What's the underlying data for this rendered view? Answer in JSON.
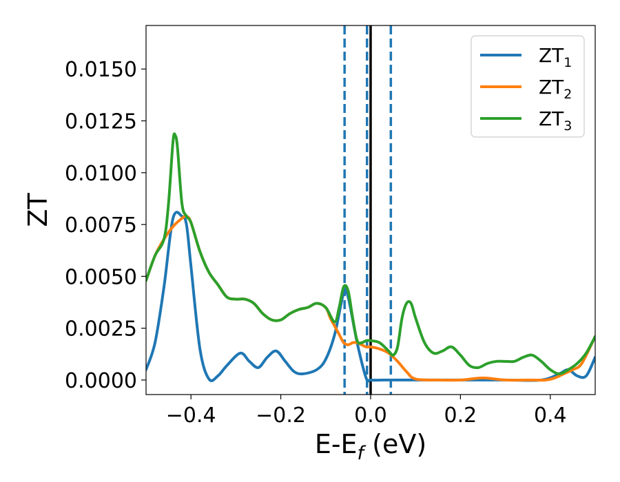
{
  "chart_data": {
    "type": "line",
    "xlabel": {
      "main": "E-E",
      "sub": "f",
      "tail": " (eV)"
    },
    "ylabel": "ZT",
    "xlim": [
      -0.5,
      0.5
    ],
    "ylim": [
      -0.0007,
      0.0171
    ],
    "x_ticks": [
      -0.4,
      -0.2,
      0.0,
      0.2,
      0.4
    ],
    "x_tick_labels": [
      "−0.4",
      "−0.2",
      "0.0",
      "0.2",
      "0.4"
    ],
    "y_ticks": [
      0.0,
      0.0025,
      0.005,
      0.0075,
      0.01,
      0.0125,
      0.015
    ],
    "y_tick_labels": [
      "0.0000",
      "0.0025",
      "0.0050",
      "0.0075",
      "0.0100",
      "0.0125",
      "0.0150"
    ],
    "grid": false,
    "legend_position": "top-right",
    "reference_lines": [
      {
        "x": -0.058,
        "style": "dashed",
        "color": "#1f77b4"
      },
      {
        "x": -0.008,
        "style": "dashed",
        "color": "#1f77b4"
      },
      {
        "x": 0.0,
        "style": "solid",
        "color": "#000000"
      },
      {
        "x": 0.045,
        "style": "dashed",
        "color": "#1f77b4"
      }
    ],
    "series": [
      {
        "name": {
          "main": "ZT",
          "sub": "1"
        },
        "color": "#1f77b4",
        "points": [
          [
            -0.5,
            0.0005
          ],
          [
            -0.48,
            0.0018
          ],
          [
            -0.46,
            0.0045
          ],
          [
            -0.44,
            0.0078
          ],
          [
            -0.42,
            0.0079
          ],
          [
            -0.41,
            0.0075
          ],
          [
            -0.4,
            0.0055
          ],
          [
            -0.38,
            0.0015
          ],
          [
            -0.36,
            5e-05
          ],
          [
            -0.34,
            0.0002
          ],
          [
            -0.32,
            0.0007
          ],
          [
            -0.29,
            0.0013
          ],
          [
            -0.27,
            0.0009
          ],
          [
            -0.25,
            0.0006
          ],
          [
            -0.23,
            0.0011
          ],
          [
            -0.21,
            0.0014
          ],
          [
            -0.19,
            0.0009
          ],
          [
            -0.17,
            0.0004
          ],
          [
            -0.15,
            0.0003
          ],
          [
            -0.12,
            0.0005
          ],
          [
            -0.1,
            0.001
          ],
          [
            -0.08,
            0.0022
          ],
          [
            -0.06,
            0.0042
          ],
          [
            -0.05,
            0.004
          ],
          [
            -0.03,
            0.0018
          ],
          [
            -0.01,
            0.0001
          ],
          [
            0.0,
            0.0
          ],
          [
            0.03,
            0.0
          ],
          [
            0.05,
            0.0
          ],
          [
            0.1,
            0.0
          ],
          [
            0.2,
            0.0
          ],
          [
            0.3,
            0.0
          ],
          [
            0.38,
            0.0
          ],
          [
            0.42,
            0.0003
          ],
          [
            0.44,
            0.0005
          ],
          [
            0.46,
            0.0002
          ],
          [
            0.48,
            0.0002
          ],
          [
            0.5,
            0.0011
          ]
        ]
      },
      {
        "name": {
          "main": "ZT",
          "sub": "2"
        },
        "color": "#ff7f0e",
        "points": [
          [
            -0.5,
            0.0048
          ],
          [
            -0.48,
            0.006
          ],
          [
            -0.46,
            0.0068
          ],
          [
            -0.44,
            0.0074
          ],
          [
            -0.42,
            0.0078
          ],
          [
            -0.41,
            0.0079
          ],
          [
            -0.4,
            0.0076
          ],
          [
            -0.38,
            0.0062
          ],
          [
            -0.36,
            0.0052
          ],
          [
            -0.34,
            0.0046
          ],
          [
            -0.32,
            0.004
          ],
          [
            -0.3,
            0.0039
          ],
          [
            -0.28,
            0.0039
          ],
          [
            -0.26,
            0.0037
          ],
          [
            -0.24,
            0.0032
          ],
          [
            -0.22,
            0.0029
          ],
          [
            -0.2,
            0.0029
          ],
          [
            -0.18,
            0.0032
          ],
          [
            -0.16,
            0.0034
          ],
          [
            -0.14,
            0.0035
          ],
          [
            -0.12,
            0.0037
          ],
          [
            -0.1,
            0.0035
          ],
          [
            -0.09,
            0.003
          ],
          [
            -0.08,
            0.0026
          ],
          [
            -0.07,
            0.0022
          ],
          [
            -0.06,
            0.0018
          ],
          [
            -0.05,
            0.0017
          ],
          [
            -0.04,
            0.0018
          ],
          [
            -0.03,
            0.0018
          ],
          [
            -0.02,
            0.0017
          ],
          [
            -0.01,
            0.0016
          ],
          [
            0.0,
            0.0016
          ],
          [
            0.02,
            0.0015
          ],
          [
            0.04,
            0.0013
          ],
          [
            0.06,
            0.0009
          ],
          [
            0.08,
            0.0004
          ],
          [
            0.1,
            5e-05
          ],
          [
            0.15,
            0.0
          ],
          [
            0.2,
            0.0
          ],
          [
            0.25,
            0.0001
          ],
          [
            0.3,
            0.0
          ],
          [
            0.35,
            0.0
          ],
          [
            0.39,
            0.0
          ],
          [
            0.41,
            0.0001
          ],
          [
            0.43,
            0.0003
          ],
          [
            0.45,
            0.0005
          ],
          [
            0.47,
            0.0008
          ],
          [
            0.5,
            0.0021
          ]
        ]
      },
      {
        "name": {
          "main": "ZT",
          "sub": "3"
        },
        "color": "#2ca02c",
        "points": [
          [
            -0.5,
            0.0048
          ],
          [
            -0.48,
            0.006
          ],
          [
            -0.46,
            0.0068
          ],
          [
            -0.45,
            0.0085
          ],
          [
            -0.44,
            0.0115
          ],
          [
            -0.435,
            0.0118
          ],
          [
            -0.43,
            0.0112
          ],
          [
            -0.42,
            0.0085
          ],
          [
            -0.41,
            0.0079
          ],
          [
            -0.4,
            0.0076
          ],
          [
            -0.38,
            0.0062
          ],
          [
            -0.36,
            0.0052
          ],
          [
            -0.34,
            0.0046
          ],
          [
            -0.32,
            0.004
          ],
          [
            -0.3,
            0.0039
          ],
          [
            -0.28,
            0.0039
          ],
          [
            -0.26,
            0.0037
          ],
          [
            -0.24,
            0.0032
          ],
          [
            -0.22,
            0.0029
          ],
          [
            -0.2,
            0.0029
          ],
          [
            -0.18,
            0.0032
          ],
          [
            -0.16,
            0.0034
          ],
          [
            -0.14,
            0.0035
          ],
          [
            -0.12,
            0.0037
          ],
          [
            -0.1,
            0.0035
          ],
          [
            -0.08,
            0.0028
          ],
          [
            -0.07,
            0.0035
          ],
          [
            -0.06,
            0.0045
          ],
          [
            -0.05,
            0.0043
          ],
          [
            -0.04,
            0.003
          ],
          [
            -0.03,
            0.0019
          ],
          [
            -0.02,
            0.0018
          ],
          [
            -0.01,
            0.0019
          ],
          [
            0.0,
            0.0019
          ],
          [
            0.02,
            0.0018
          ],
          [
            0.04,
            0.0014
          ],
          [
            0.05,
            0.0012
          ],
          [
            0.06,
            0.0016
          ],
          [
            0.07,
            0.003
          ],
          [
            0.08,
            0.0037
          ],
          [
            0.09,
            0.0037
          ],
          [
            0.1,
            0.003
          ],
          [
            0.12,
            0.0018
          ],
          [
            0.14,
            0.0013
          ],
          [
            0.16,
            0.0014
          ],
          [
            0.18,
            0.0016
          ],
          [
            0.2,
            0.0012
          ],
          [
            0.22,
            0.0007
          ],
          [
            0.24,
            0.0006
          ],
          [
            0.26,
            0.0008
          ],
          [
            0.28,
            0.0009
          ],
          [
            0.3,
            0.0009
          ],
          [
            0.32,
            0.0009
          ],
          [
            0.34,
            0.0011
          ],
          [
            0.36,
            0.0012
          ],
          [
            0.38,
            0.0009
          ],
          [
            0.4,
            0.0005
          ],
          [
            0.42,
            0.0003
          ],
          [
            0.44,
            0.0005
          ],
          [
            0.46,
            0.0008
          ],
          [
            0.48,
            0.0013
          ],
          [
            0.5,
            0.0021
          ]
        ]
      }
    ]
  }
}
